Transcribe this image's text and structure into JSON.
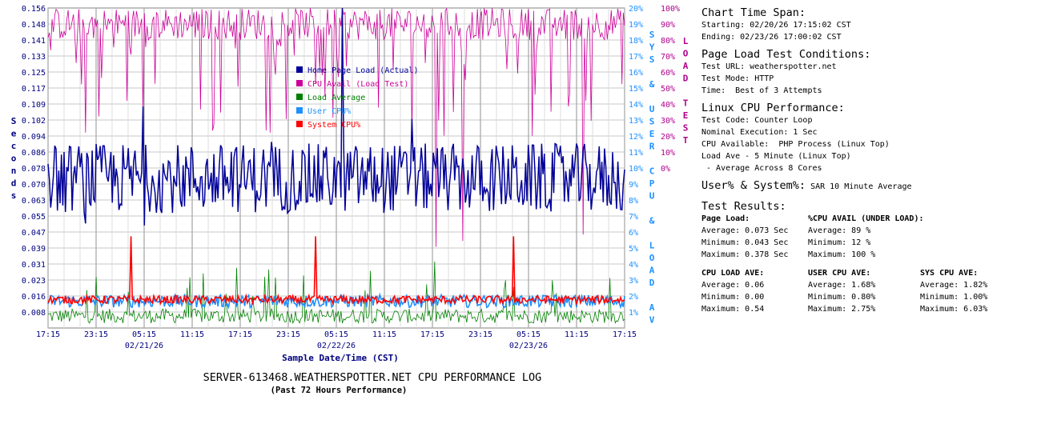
{
  "chart_data": {
    "type": "line",
    "title": "SERVER-613468.WEATHERSPOTTER.NET CPU PERFORMANCE LOG",
    "subtitle": "(Past 72 Hours Performance)",
    "xlabel": "Sample Date/Time (CST)",
    "x_ticks": [
      "17:15",
      "23:15",
      "05:15",
      "11:15",
      "17:15",
      "23:15",
      "05:15",
      "11:15",
      "17:15",
      "23:15",
      "05:15",
      "11:15",
      "17:15"
    ],
    "x_dates": [
      "02/21/26",
      "02/22/26",
      "02/23/26"
    ],
    "left_axis": {
      "label": "Seconds",
      "ticks": [
        "0.156",
        "0.148",
        "0.141",
        "0.133",
        "0.125",
        "0.117",
        "0.109",
        "0.102",
        "0.094",
        "0.086",
        "0.078",
        "0.070",
        "0.063",
        "0.055",
        "0.047",
        "0.039",
        "0.031",
        "0.023",
        "0.016",
        "0.008"
      ],
      "ylim": [
        0,
        0.156
      ],
      "color": "#000080"
    },
    "right_axis1": {
      "label": "SYS & USER CPU & LOAD AV",
      "ticks": [
        "20%",
        "19%",
        "18%",
        "17%",
        "16%",
        "15%",
        "14%",
        "13%",
        "12%",
        "11%",
        "10%",
        "9%",
        "8%",
        "7%",
        "6%",
        "5%",
        "4%",
        "3%",
        "2%",
        "1%"
      ],
      "ylim": [
        0,
        20
      ],
      "color": "#1e90ff"
    },
    "right_axis2": {
      "label": "LOAD TEST",
      "ticks": [
        "100%",
        "90%",
        "80%",
        "70%",
        "60%",
        "50%",
        "40%",
        "30%",
        "20%",
        "10%",
        "0%"
      ],
      "ylim": [
        0,
        100
      ],
      "color": "#b0008c"
    },
    "grid": true,
    "legend_position": "inside-top-center",
    "series": [
      {
        "name": "Home Page Load (Actual)",
        "color": "#000099",
        "axis": "left",
        "mean": 0.073,
        "min": 0.043,
        "max": 0.378
      },
      {
        "name": "CPU Avail (Load Test)",
        "color": "#cc0099",
        "axis": "right2",
        "mean": 89,
        "min": 12,
        "max": 100
      },
      {
        "name": "Load Average",
        "color": "#008000",
        "axis": "right1",
        "mean": 0.06,
        "min": 0.0,
        "max": 0.54
      },
      {
        "name": "User CPU%",
        "color": "#1e90ff",
        "axis": "right1",
        "mean": 1.68,
        "min": 0.8,
        "max": 2.75
      },
      {
        "name": "System CPU%",
        "color": "#ff0000",
        "axis": "right1",
        "mean": 1.82,
        "min": 1.0,
        "max": 6.03
      }
    ]
  },
  "side": {
    "span_title": "Chart Time Span:",
    "span_start": "Starting: 02/20/26 17:15:02 CST",
    "span_end": "Ending: 02/23/26 17:00:02 CST",
    "cond_title": "Page Load Test Conditions:",
    "cond_url": "Test URL: weatherspotter.net",
    "cond_mode": "Test Mode: HTTP",
    "cond_time": "Time:  Best of 3 Attempts",
    "cpu_title": "Linux CPU Performance:",
    "cpu_code": "Test Code: Counter Loop",
    "cpu_exec": "Nominal Execution: 1 Sec",
    "cpu_avail": "CPU Available:  PHP Process (Linux Top)",
    "cpu_load": "Load Ave - 5 Minute (Linux Top)",
    "cpu_cores": " - Average Across 8 Cores",
    "us_title": "User% & System%:",
    "us_note": "SAR 10 Minute Average",
    "res_title": "Test Results:",
    "page_load_h": "Page Load:",
    "page_avg": "Average: 0.073 Sec",
    "page_min": "Minimum: 0.043 Sec",
    "page_max": "Maximum: 0.378 Sec",
    "avail_h": "%CPU AVAIL (UNDER LOAD):",
    "avail_avg": "Average: 89 %",
    "avail_min": "Minimum: 12 %",
    "avail_max": "Maximum: 100 %",
    "load_h": "CPU LOAD AVE:",
    "load_avg": "Average: 0.06",
    "load_min": "Minimum: 0.00",
    "load_max": "Maximum: 0.54",
    "user_h": "USER CPU AVE:",
    "user_avg": "Average: 1.68%",
    "user_min": "Minimum: 0.80%",
    "user_max": "Maximum: 2.75%",
    "sys_h": "SYS CPU AVE:",
    "sys_avg": "Average: 1.82%",
    "sys_min": "Minimum: 1.00%",
    "sys_max": "Maximum: 6.03%"
  }
}
